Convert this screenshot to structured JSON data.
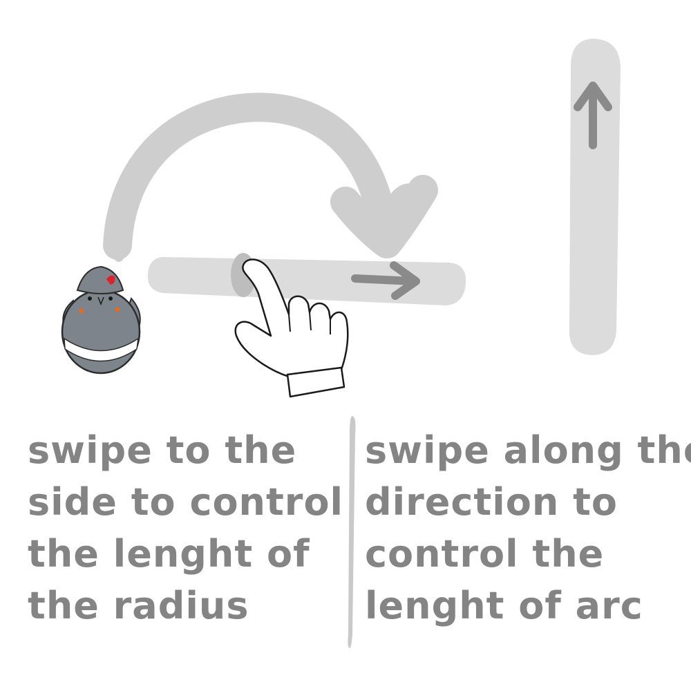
{
  "instructions": {
    "radius": {
      "lines": [
        "swipe to the",
        "side to control",
        "the lenght of",
        "the radius"
      ]
    },
    "arc": {
      "lines": [
        "swipe along the",
        "direction to",
        "control the",
        "lenght of arc"
      ]
    }
  },
  "colors": {
    "text": "#858484",
    "track": "#dcdcdc",
    "arc_track": "#cecece",
    "arrow": "#8a8a8a",
    "divider": "#c9c9c9",
    "bird_body": "#7e848c",
    "bird_comb": "#e0202a"
  },
  "icons": [
    "bird-icon",
    "hand-pointer-icon",
    "arc-arrow-icon",
    "right-arrow-icon",
    "up-arrow-icon"
  ]
}
